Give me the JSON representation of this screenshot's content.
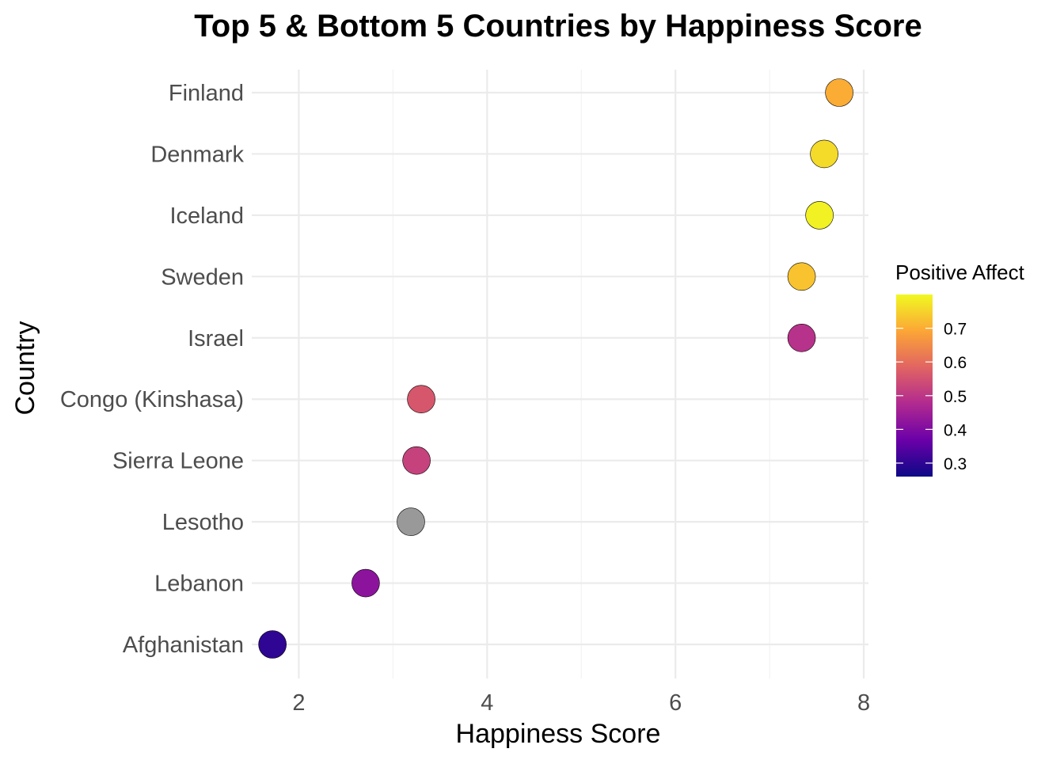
{
  "chart_data": {
    "type": "scatter",
    "title": "Top 5 & Bottom 5 Countries by Happiness Score",
    "xlabel": "Happiness Score",
    "ylabel": "Country",
    "xlim": [
      1.5,
      8.05
    ],
    "xticks": [
      2,
      4,
      6,
      8
    ],
    "grid": true,
    "legend": {
      "title": "Positive Affect",
      "placement": "right",
      "ticks": [
        0.3,
        0.4,
        0.5,
        0.6,
        0.7
      ],
      "range": [
        0.26,
        0.8
      ],
      "palette": [
        "#0d0887",
        "#6a00a8",
        "#b12a90",
        "#e16462",
        "#fca636",
        "#f0f921"
      ],
      "na_color": "#999999"
    },
    "points": [
      {
        "country": "Finland",
        "score": 7.74,
        "positive_affect": 0.7
      },
      {
        "country": "Denmark",
        "score": 7.58,
        "positive_affect": 0.76
      },
      {
        "country": "Iceland",
        "score": 7.53,
        "positive_affect": 0.79
      },
      {
        "country": "Sweden",
        "score": 7.34,
        "positive_affect": 0.73
      },
      {
        "country": "Israel",
        "score": 7.34,
        "positive_affect": 0.49
      },
      {
        "country": "Congo (Kinshasa)",
        "score": 3.3,
        "positive_affect": 0.56
      },
      {
        "country": "Sierra Leone",
        "score": 3.25,
        "positive_affect": 0.52
      },
      {
        "country": "Lesotho",
        "score": 3.19,
        "positive_affect": null
      },
      {
        "country": "Lebanon",
        "score": 2.71,
        "positive_affect": 0.42
      },
      {
        "country": "Afghanistan",
        "score": 1.72,
        "positive_affect": 0.3
      }
    ]
  }
}
